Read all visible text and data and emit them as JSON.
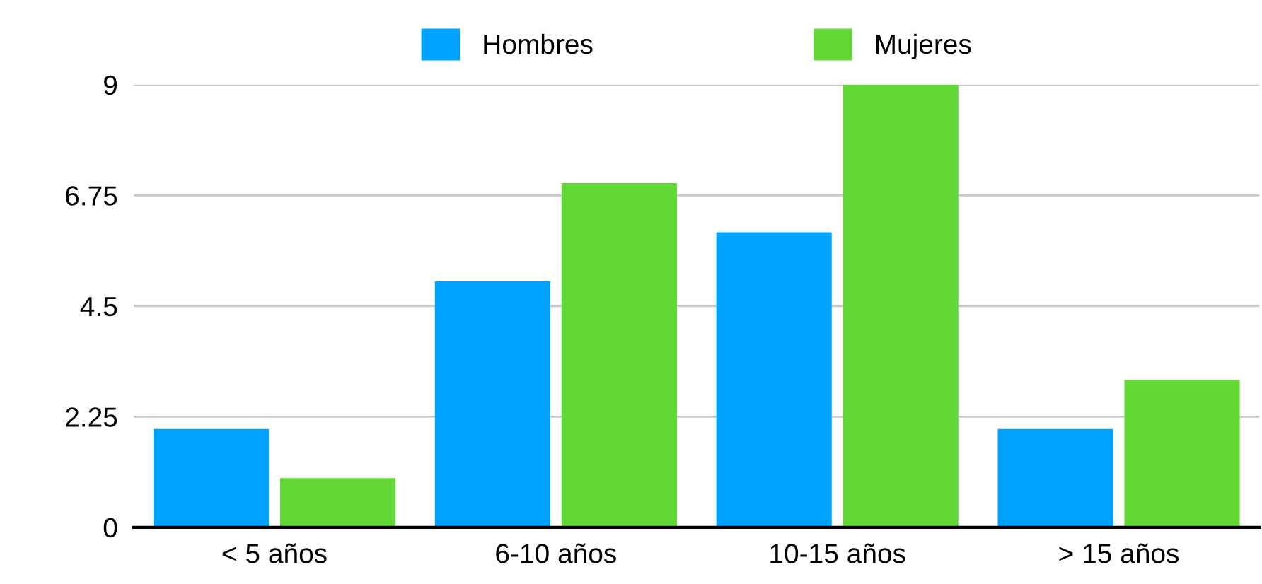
{
  "chart_data": {
    "type": "bar",
    "categories": [
      "< 5 años",
      "6-10 años",
      "10-15 años",
      "> 15 años"
    ],
    "series": [
      {
        "name": "Hombres",
        "color": "#00a2ff",
        "values": [
          2,
          5,
          6,
          2
        ]
      },
      {
        "name": "Mujeres",
        "color": "#61d836",
        "values": [
          1,
          7,
          9,
          3
        ]
      }
    ],
    "ylim": [
      0,
      9
    ],
    "yticks": [
      0,
      2.25,
      4.5,
      6.75,
      9
    ],
    "grid": "y",
    "legend": "top"
  }
}
